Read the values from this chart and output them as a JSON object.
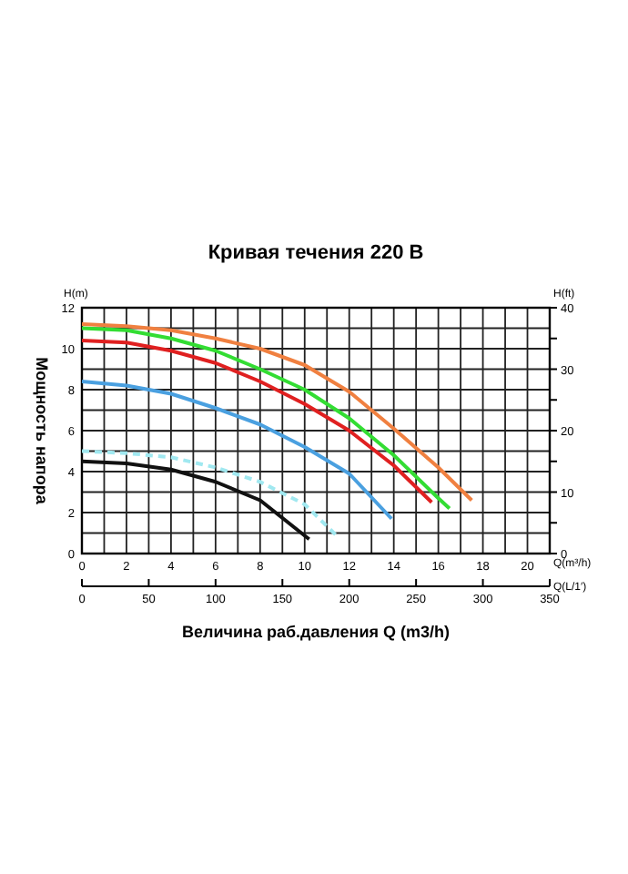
{
  "chart_data": {
    "type": "line",
    "title": "Кривая течения 220 В",
    "xlabel": "Величина раб.давления Q (m3/h)",
    "ylabel": "Мощность напора",
    "y2label": "H(ft)",
    "x2label": "Q(L/1′)",
    "annotations": [
      "H(m)",
      "Q(m³/h)"
    ],
    "xlim": [
      0,
      21
    ],
    "xticks": [
      0,
      {
        "value": 1,
        "label": null
      },
      2,
      {
        "value": 3,
        "label": null
      },
      4,
      {
        "value": 5,
        "label": null
      },
      6,
      {
        "value": 7,
        "label": null
      },
      8,
      {
        "value": 9,
        "label": null
      },
      10,
      {
        "value": 11,
        "label": null
      },
      12,
      {
        "value": 13,
        "label": null
      },
      14,
      {
        "value": 15,
        "label": null
      },
      16,
      {
        "value": 17,
        "label": null
      },
      18,
      {
        "value": 19,
        "label": null
      },
      20,
      {
        "value": 21,
        "label": null
      }
    ],
    "ylim": [
      0,
      12
    ],
    "yticks": [
      0,
      {
        "value": 1,
        "label": null
      },
      2,
      {
        "value": 3,
        "label": null
      },
      4,
      {
        "value": 5,
        "label": null
      },
      6,
      {
        "value": 7,
        "label": null
      },
      8,
      {
        "value": 9,
        "label": null
      },
      10,
      {
        "value": 11,
        "label": null
      },
      12
    ],
    "y2lim": [
      0,
      40
    ],
    "y2ticks": [
      0,
      {
        "value": 5,
        "label": null
      },
      10,
      {
        "value": 15,
        "label": null
      },
      20,
      {
        "value": 25,
        "label": null
      },
      30,
      {
        "value": 35,
        "label": null
      },
      40
    ],
    "x2lim": [
      0,
      350
    ],
    "x2ticks": [
      0,
      50,
      100,
      150,
      200,
      250,
      300,
      350
    ],
    "grid": true,
    "marker": "none",
    "line_style": "solid",
    "series": [
      {
        "color": "#f08040",
        "x": [
          0,
          2,
          4,
          6,
          8,
          10,
          12,
          14,
          16,
          17.5
        ],
        "values": [
          11.2,
          11.1,
          10.9,
          10.5,
          10,
          9.2,
          7.9,
          6.1,
          4.2,
          2.6
        ]
      },
      {
        "color": "#33dd33",
        "x": [
          0,
          2,
          4,
          6,
          8,
          10,
          12,
          14,
          16,
          16.5
        ],
        "values": [
          11,
          10.9,
          10.5,
          9.9,
          9,
          8,
          6.6,
          4.8,
          2.7,
          2.2
        ]
      },
      {
        "color": "#e02020",
        "x": [
          0,
          2,
          4,
          6,
          8,
          10,
          12,
          14,
          15.7
        ],
        "values": [
          10.4,
          10.3,
          9.9,
          9.3,
          8.4,
          7.3,
          6,
          4.3,
          2.5
        ]
      },
      {
        "color": "#4aa0e0",
        "x": [
          0,
          2,
          4,
          6,
          8,
          10,
          12,
          13.9
        ],
        "values": [
          8.4,
          8.2,
          7.8,
          7.1,
          6.3,
          5.2,
          3.9,
          1.7
        ]
      },
      {
        "color": "#a0e8f0",
        "line_style": "dashed",
        "x": [
          0,
          2,
          4,
          6,
          8,
          10,
          11.5
        ],
        "values": [
          5,
          4.9,
          4.7,
          4.2,
          3.5,
          2.4,
          0.8
        ]
      },
      {
        "color": "#111111",
        "x": [
          0,
          2,
          4,
          6,
          8,
          10.2
        ],
        "values": [
          4.5,
          4.4,
          4.1,
          3.5,
          2.6,
          0.7
        ]
      }
    ]
  }
}
